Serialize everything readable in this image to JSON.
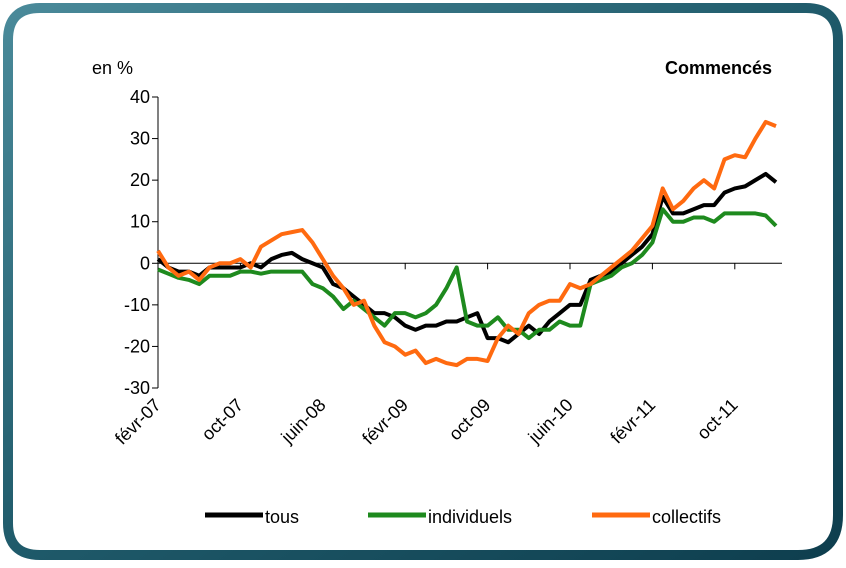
{
  "chart_data": {
    "type": "line",
    "title": "Commencés",
    "ylabel": "en %",
    "categories": [
      "févr-07",
      null,
      null,
      null,
      null,
      null,
      null,
      null,
      "oct-07",
      null,
      null,
      null,
      null,
      null,
      null,
      null,
      "juin-08",
      null,
      null,
      null,
      null,
      null,
      null,
      null,
      "févr-09",
      null,
      null,
      null,
      null,
      null,
      null,
      null,
      "oct-09",
      null,
      null,
      null,
      null,
      null,
      null,
      null,
      "juin-10",
      null,
      null,
      null,
      null,
      null,
      null,
      null,
      "févr-11",
      null,
      null,
      null,
      null,
      null,
      null,
      null,
      "oct-11",
      null,
      null,
      null,
      null
    ],
    "series": [
      {
        "name": "tous",
        "color": "#000000",
        "values": [
          1,
          -1,
          -2,
          -2,
          -3,
          -1,
          -1,
          -1,
          -1,
          0,
          -1,
          1,
          2,
          2.5,
          1,
          0,
          -1,
          -5,
          -6,
          -8,
          -10,
          -12,
          -12,
          -13,
          -15,
          -16,
          -15,
          -15,
          -14,
          -14,
          -13,
          -12,
          -18,
          -18,
          -19,
          -17,
          -15,
          -17,
          -14,
          -12,
          -10,
          -10,
          -4,
          -3,
          -2,
          0,
          2,
          4,
          7,
          16,
          12,
          12,
          13,
          14,
          14,
          17,
          18,
          18.5,
          20,
          21.5,
          19.5
        ]
      },
      {
        "name": "individuels",
        "color": "#1e8a1e",
        "values": [
          -1.5,
          -2.5,
          -3.5,
          -4,
          -5,
          -3,
          -3,
          -3,
          -2,
          -2,
          -2.5,
          -2,
          -2,
          -2,
          -2,
          -5,
          -6,
          -8,
          -11,
          -9,
          -11,
          -13,
          -15,
          -12,
          -12,
          -13,
          -12,
          -10,
          -6,
          -1,
          -14,
          -15,
          -15,
          -13,
          -16,
          -16,
          -18,
          -16,
          -16,
          -14,
          -15,
          -15,
          -5,
          -4,
          -3,
          -1,
          0,
          2,
          5,
          13,
          10,
          10,
          11,
          11,
          10,
          12,
          12,
          12,
          12,
          11.5,
          9
        ]
      },
      {
        "name": "collectifs",
        "color": "#ff6a10",
        "values": [
          3,
          -1,
          -3,
          -2,
          -4,
          -1,
          0,
          0,
          1,
          -1,
          4,
          5.5,
          7,
          7.5,
          8,
          5,
          1,
          -3,
          -6,
          -10,
          -9,
          -15,
          -19,
          -20,
          -22,
          -21,
          -24,
          -23,
          -24,
          -24.5,
          -23,
          -23,
          -23.5,
          -18,
          -15,
          -17,
          -12,
          -10,
          -9,
          -9,
          -5,
          -6,
          -5,
          -3,
          -1,
          1,
          3,
          6,
          9,
          18,
          13,
          15,
          18,
          20,
          18,
          25,
          26,
          25.5,
          30,
          34,
          33
        ]
      }
    ],
    "ylim": [
      -30,
      40
    ],
    "yticks": [
      -30,
      -20,
      -10,
      0,
      10,
      20,
      30,
      40
    ]
  }
}
